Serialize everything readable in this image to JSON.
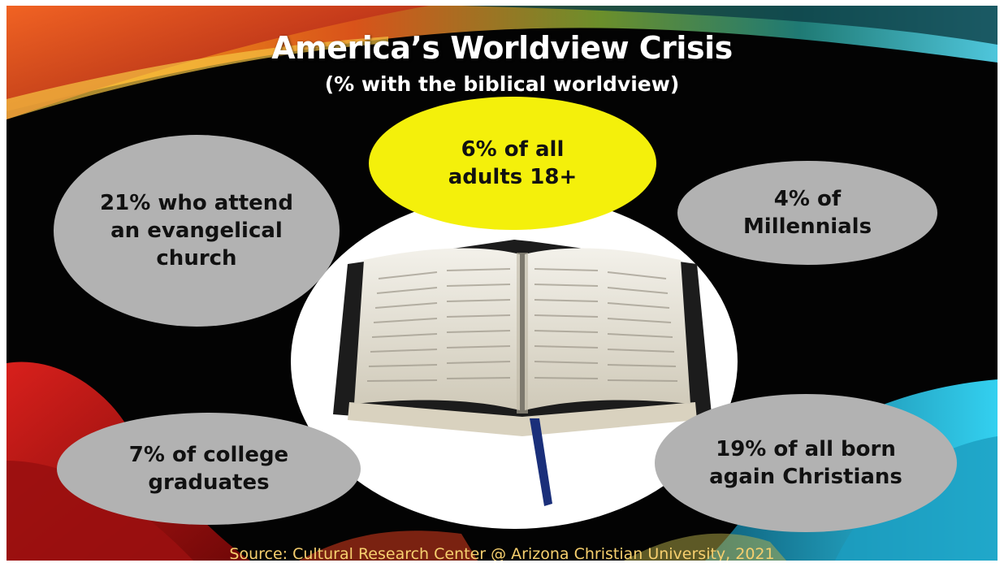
{
  "slide": {
    "title": "America’s Worldview Crisis",
    "subtitle": "(% with the biblical worldview)",
    "bubbles": {
      "top": "6% of all\nadults 18+",
      "left": "21% who attend\nan evangelical\nchurch",
      "right": "4% of\nMillennials",
      "bottom_left": "7% of college\ngraduates",
      "bottom_right": "19% of all born\nagain Christians"
    },
    "source": "Source: Cultural Research Center @ Arizona Christian University, 2021"
  },
  "colors": {
    "background": "#030303",
    "highlight_bubble": "#f4f00b",
    "bubble": "#b2b2b2",
    "source_text": "#f6cf6e"
  },
  "icons": [
    "open-bible-image",
    "decorative-swooshes"
  ]
}
